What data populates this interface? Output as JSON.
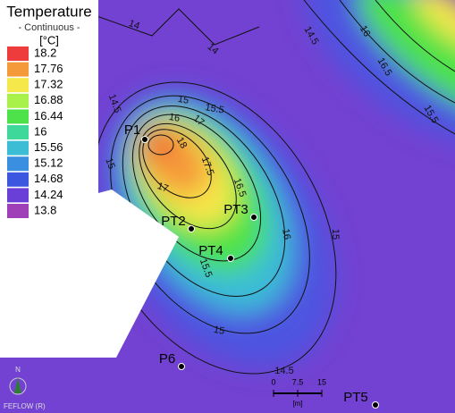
{
  "legend": {
    "title": "Temperature",
    "subtitle": "- Continuous -",
    "unit": "[°C]",
    "entries": [
      {
        "label": "18.2",
        "color": "#ee3b3b"
      },
      {
        "label": "17.76",
        "color": "#f59a3a"
      },
      {
        "label": "17.32",
        "color": "#f5e84a"
      },
      {
        "label": "16.88",
        "color": "#a8f04a"
      },
      {
        "label": "16.44",
        "color": "#4de24a"
      },
      {
        "label": "16",
        "color": "#3dd89a"
      },
      {
        "label": "15.56",
        "color": "#3bbdd6"
      },
      {
        "label": "15.12",
        "color": "#3b8fe0"
      },
      {
        "label": "14.68",
        "color": "#3b57e0"
      },
      {
        "label": "14.24",
        "color": "#6a3fd8"
      },
      {
        "label": "13.8",
        "color": "#a040b8"
      }
    ]
  },
  "points": [
    {
      "label": "P1"
    },
    {
      "label": "PT2"
    },
    {
      "label": "PT3"
    },
    {
      "label": "PT4"
    },
    {
      "label": "PT5"
    },
    {
      "label": "P6"
    }
  ],
  "contour_labels": [
    "14",
    "14",
    "14.5",
    "16",
    "16.5",
    "15.5",
    "14.5",
    "15",
    "15.5",
    "16",
    "17",
    "17.5",
    "16.5",
    "16",
    "15",
    "15.5",
    "15",
    "14.5",
    "15",
    "17",
    "18"
  ],
  "scale_bar": {
    "ticks": [
      "0",
      "7.5",
      "15"
    ],
    "unit": "[m]"
  },
  "north_label": "N",
  "watermark": "FEFLOW (R)"
}
